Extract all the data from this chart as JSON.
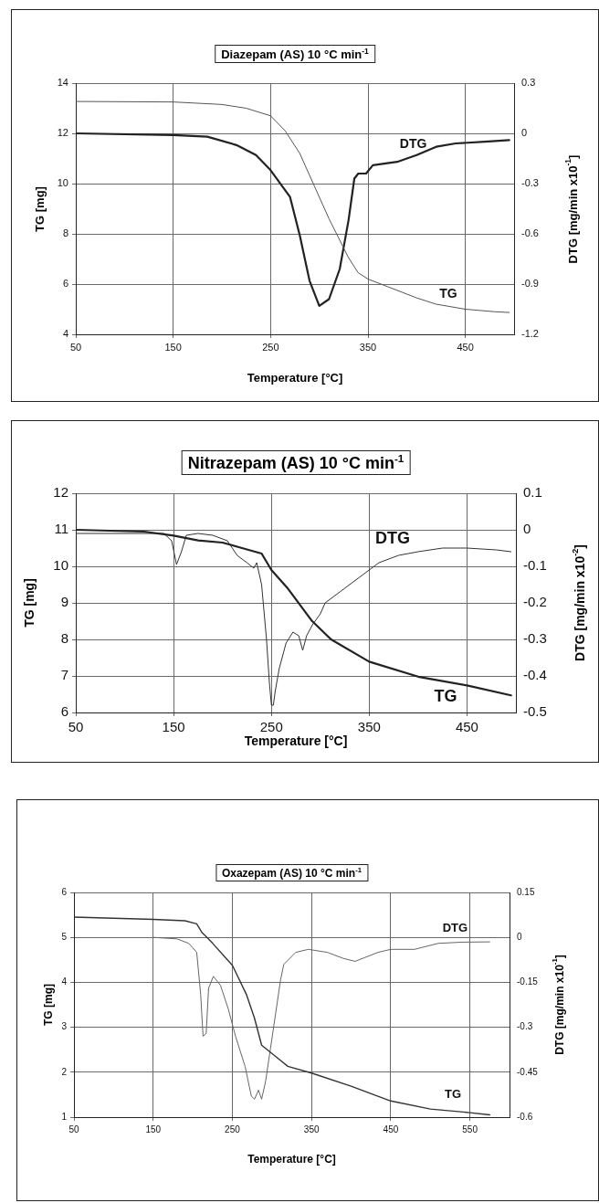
{
  "chart_data": [
    {
      "type": "line",
      "title": "Diazepam  (AS) 10 °C min$^{-1}$",
      "xlabel": "Temperature [°C]",
      "ylabel": "TG [mg]",
      "y2label": "DTG [mg/min x10$^{-1}$]",
      "xlim": [
        50,
        500
      ],
      "xticks": [
        50,
        150,
        250,
        350,
        450
      ],
      "ylim": [
        4,
        14
      ],
      "yticks": [
        4,
        6,
        8,
        10,
        12,
        14
      ],
      "y2lim": [
        -1.2,
        0.3
      ],
      "y2ticks": [
        -1.2,
        -0.9,
        -0.6,
        -0.3,
        0,
        0.3
      ],
      "grid": true,
      "series": [
        {
          "name": "TG",
          "color": "#555555",
          "x": [
            50,
            150,
            200,
            225,
            250,
            265,
            280,
            295,
            310,
            330,
            340,
            350,
            370,
            400,
            420,
            450,
            480,
            495
          ],
          "values": [
            13.27,
            13.25,
            13.15,
            13.0,
            12.7,
            12.1,
            11.2,
            9.9,
            8.6,
            7.05,
            6.45,
            6.2,
            5.9,
            5.45,
            5.2,
            5.0,
            4.9,
            4.87
          ]
        },
        {
          "name": "DTG",
          "color": "#222222",
          "axis": "y2",
          "x": [
            50,
            150,
            185,
            215,
            235,
            250,
            270,
            280,
            290,
            300,
            310,
            321,
            330,
            336,
            340,
            348,
            355,
            380,
            400,
            420,
            440,
            470,
            495
          ],
          "values": [
            0,
            -0.01,
            -0.02,
            -0.07,
            -0.13,
            -0.22,
            -0.38,
            -0.61,
            -0.88,
            -1.03,
            -0.99,
            -0.81,
            -0.52,
            -0.27,
            -0.24,
            -0.24,
            -0.19,
            -0.17,
            -0.13,
            -0.08,
            -0.06,
            -0.05,
            -0.04
          ]
        }
      ]
    },
    {
      "type": "line",
      "title": "Nitrazepam (AS) 10 °C min$^{-1}$",
      "xlabel": "Temperature [°C]",
      "ylabel": "TG [mg]",
      "y2label": "DTG [mg/min x10$^{-2}$]",
      "xlim": [
        50,
        500
      ],
      "xticks": [
        50,
        150,
        250,
        350,
        450
      ],
      "ylim": [
        6,
        12
      ],
      "yticks": [
        6,
        7,
        8,
        9,
        10,
        11,
        12
      ],
      "y2lim": [
        -0.5,
        0.1
      ],
      "y2ticks": [
        -0.5,
        -0.4,
        -0.3,
        -0.2,
        -0.1,
        0,
        0.1
      ],
      "grid": true,
      "series": [
        {
          "name": "TG",
          "color": "#222222",
          "x": [
            50,
            120,
            150,
            175,
            200,
            220,
            240,
            250,
            266,
            291,
            311,
            350,
            400,
            450,
            495
          ],
          "values": [
            11.0,
            10.95,
            10.84,
            10.71,
            10.65,
            10.5,
            10.35,
            9.9,
            9.42,
            8.52,
            8.0,
            7.39,
            6.98,
            6.74,
            6.47
          ]
        },
        {
          "name": "DTG",
          "color": "#333333",
          "axis": "y2",
          "x": [
            50,
            140,
            148,
            153,
            158,
            163,
            175,
            190,
            205,
            215,
            225,
            232,
            235,
            240,
            245,
            248,
            250,
            252,
            254,
            258,
            265,
            272,
            278,
            282,
            286,
            292,
            300,
            305,
            320,
            340,
            360,
            380,
            400,
            425,
            450,
            480,
            495
          ],
          "values": [
            -0.01,
            -0.01,
            -0.03,
            -0.095,
            -0.06,
            -0.015,
            -0.01,
            -0.015,
            -0.03,
            -0.07,
            -0.09,
            -0.105,
            -0.09,
            -0.15,
            -0.3,
            -0.42,
            -0.48,
            -0.48,
            -0.44,
            -0.38,
            -0.31,
            -0.28,
            -0.29,
            -0.33,
            -0.29,
            -0.26,
            -0.23,
            -0.2,
            -0.17,
            -0.13,
            -0.09,
            -0.07,
            -0.06,
            -0.05,
            -0.05,
            -0.055,
            -0.06
          ]
        }
      ]
    },
    {
      "type": "line",
      "title": "Oxazepam (AS)  10 °C min$^{-1}$",
      "xlabel": "Temperature [°C]",
      "ylabel": "TG [mg]",
      "y2label": "DTG [mg/min x10$^{-1}$]",
      "xlim": [
        50,
        600
      ],
      "xticks": [
        50,
        150,
        250,
        350,
        450,
        550
      ],
      "ylim": [
        1,
        6
      ],
      "yticks": [
        1,
        2,
        3,
        4,
        5,
        6
      ],
      "y2lim": [
        -0.6,
        0.15
      ],
      "y2ticks": [
        -0.6,
        -0.45,
        -0.3,
        -0.15,
        0,
        0.15
      ],
      "grid": true,
      "series": [
        {
          "name": "TG",
          "color": "#333333",
          "x": [
            50,
            150,
            190,
            205,
            212,
            218,
            225,
            250,
            268,
            278,
            287,
            311,
            320,
            350,
            400,
            450,
            500,
            550,
            575
          ],
          "values": [
            5.45,
            5.4,
            5.37,
            5.3,
            5.1,
            5.0,
            4.87,
            4.38,
            3.72,
            3.2,
            2.6,
            2.26,
            2.13,
            1.98,
            1.69,
            1.36,
            1.18,
            1.1,
            1.05
          ]
        },
        {
          "name": "DTG",
          "color": "#666666",
          "axis": "y2",
          "x": [
            150,
            180,
            195,
            205,
            210,
            213,
            217,
            220,
            226,
            235,
            245,
            254,
            266,
            274,
            278,
            283,
            287,
            292,
            301,
            311,
            315,
            330,
            346,
            370,
            390,
            405,
            434,
            450,
            480,
            510,
            540,
            575
          ],
          "values": [
            0,
            -0.005,
            -0.02,
            -0.05,
            -0.19,
            -0.33,
            -0.32,
            -0.17,
            -0.13,
            -0.16,
            -0.24,
            -0.33,
            -0.43,
            -0.53,
            -0.54,
            -0.51,
            -0.54,
            -0.48,
            -0.32,
            -0.14,
            -0.09,
            -0.05,
            -0.04,
            -0.05,
            -0.07,
            -0.08,
            -0.05,
            -0.04,
            -0.04,
            -0.02,
            -0.016,
            -0.015
          ]
        }
      ]
    }
  ]
}
